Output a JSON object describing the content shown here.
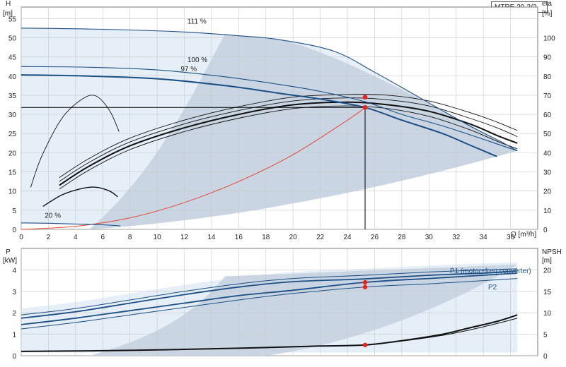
{
  "chart_data": [
    {
      "type": "line",
      "name": "H/eta",
      "y_axis_label": "H",
      "y_axis_unit": "[m]",
      "y2_axis_label": "eta",
      "y2_axis_unit": "[%]",
      "x_axis_label": "Q [m³/h]",
      "model": "MTRE 20-2/2",
      "xlim": [
        0,
        38
      ],
      "ylim": [
        0,
        58
      ],
      "y2lim": [
        0,
        116
      ],
      "x_ticks": [
        "0",
        "2",
        "4",
        "6",
        "8",
        "10",
        "12",
        "14",
        "16",
        "18",
        "20",
        "22",
        "24",
        "26",
        "28",
        "30",
        "32",
        "34",
        "36"
      ],
      "y_ticks": [
        "0",
        "5",
        "10",
        "15",
        "20",
        "25",
        "30",
        "35",
        "40",
        "45",
        "50",
        "55"
      ],
      "y2_ticks": [
        "0",
        "10",
        "20",
        "30",
        "40",
        "50",
        "60",
        "70",
        "80",
        "90",
        "100"
      ],
      "speed_labels": [
        "111 %",
        "100 %",
        "97 %",
        "20 %"
      ],
      "series": [
        {
          "label": "111 %",
          "x": [
            0,
            6,
            12,
            16,
            19,
            23,
            26,
            30,
            33,
            35.5,
            36.5
          ],
          "y": [
            52.5,
            52.2,
            51.5,
            50.5,
            49.5,
            46.5,
            41,
            33,
            27,
            22.5,
            20.5
          ]
        },
        {
          "label": "100 %",
          "x": [
            0,
            5,
            10,
            15,
            19,
            22,
            25.3,
            28,
            31,
            34,
            36.5
          ],
          "y": [
            42.5,
            42.3,
            41.6,
            39.8,
            37.8,
            36,
            33.3,
            30,
            27,
            23.5,
            20.5
          ]
        },
        {
          "label": "97 %",
          "x": [
            0,
            5,
            10,
            15,
            19,
            22,
            25.3,
            28,
            31,
            33,
            35
          ],
          "y": [
            40.3,
            40,
            39.3,
            37.5,
            35.5,
            34,
            31.8,
            28.5,
            25,
            22,
            19
          ]
        },
        {
          "label": "20 %",
          "x": [
            0,
            2,
            4,
            6,
            7.3
          ],
          "y": [
            1.7,
            1.6,
            1.4,
            1.2,
            0.9
          ]
        }
      ],
      "system_curve": {
        "x": [
          0,
          4,
          8,
          12,
          16,
          20,
          24,
          25.3
        ],
        "y": [
          0,
          0.8,
          3,
          7,
          12.5,
          19.5,
          28.5,
          31.8
        ]
      },
      "eta_curves": [
        {
          "x": [
            2.8,
            5,
            8,
            12,
            16,
            20,
            24,
            27,
            30,
            33,
            35,
            36.5
          ],
          "y": [
            10.5,
            15.5,
            20.8,
            25.5,
            29,
            31.5,
            32.2,
            31.5,
            29.5,
            26,
            23,
            21
          ]
        },
        {
          "x": [
            2.8,
            5,
            8,
            12,
            16,
            20,
            24,
            27,
            30,
            33,
            35,
            36.5
          ],
          "y": [
            11.5,
            16.5,
            21.8,
            26.5,
            30,
            32.5,
            33.2,
            32.5,
            30.8,
            27.5,
            24.5,
            22.5
          ]
        },
        {
          "x": [
            2.8,
            5,
            8,
            12,
            16,
            20,
            24,
            27,
            30,
            33,
            35,
            36.5
          ],
          "y": [
            12.5,
            17.5,
            22.8,
            27.5,
            31,
            33.5,
            34.3,
            33.8,
            32.2,
            29,
            26.5,
            24.2
          ]
        },
        {
          "x": [
            2.8,
            5,
            8,
            12,
            16,
            20,
            24,
            27,
            30,
            33,
            35,
            36.5
          ],
          "y": [
            13.5,
            18.5,
            23.8,
            28.5,
            32,
            34.5,
            35.2,
            35,
            33.5,
            30.5,
            28,
            25.8
          ]
        }
      ],
      "thin_eta_curve": {
        "x": [
          0.7,
          1.5,
          3,
          4.5,
          5.5,
          6.5,
          7.2
        ],
        "y": [
          11,
          19,
          29,
          34,
          34.8,
          31,
          25.5
        ]
      },
      "low_eta_curve": {
        "x": [
          1.6,
          3,
          4.5,
          5.5,
          6.5,
          7.1
        ],
        "y": [
          6,
          9,
          10.7,
          11,
          10,
          8.5
        ]
      },
      "duty_point": {
        "x": 25.3,
        "y": 31.8
      },
      "duty_point_upper": {
        "x": 25.3,
        "y": 34.5
      }
    },
    {
      "type": "line",
      "name": "P/NPSH",
      "y_axis_label": "P",
      "y_axis_unit": "[kW]",
      "y2_axis_label": "NPSH",
      "y2_axis_unit": "[m]",
      "xlim": [
        0,
        38
      ],
      "ylim": [
        0,
        5
      ],
      "y2lim": [
        0,
        25
      ],
      "y_ticks": [
        "0",
        "1",
        "2",
        "3",
        "4"
      ],
      "y2_ticks": [
        "0",
        "5",
        "10",
        "15",
        "20"
      ],
      "series_labels": [
        "P1 (motor+freq.converter)",
        "P2"
      ],
      "series": [
        {
          "label": "P1 (motor+freq.converter)",
          "x": [
            0,
            4,
            8,
            12,
            16,
            20,
            25.3,
            30,
            34,
            36.5
          ],
          "y": [
            1.9,
            2.2,
            2.6,
            3.0,
            3.35,
            3.6,
            3.75,
            3.9,
            4.0,
            4.05
          ]
        },
        {
          "label": "P1",
          "x": [
            0,
            4,
            8,
            12,
            16,
            20,
            25.3,
            30,
            34,
            36.5
          ],
          "y": [
            1.75,
            2.05,
            2.45,
            2.85,
            3.2,
            3.45,
            3.58,
            3.75,
            3.85,
            3.95
          ]
        },
        {
          "label": "P2",
          "x": [
            0,
            4,
            8,
            12,
            16,
            20,
            25.3,
            30,
            34,
            36.5
          ],
          "y": [
            1.45,
            1.75,
            2.1,
            2.45,
            2.8,
            3.05,
            3.42,
            3.6,
            3.75,
            3.85
          ]
        },
        {
          "label": "P2",
          "x": [
            0,
            4,
            8,
            12,
            16,
            20,
            25.3,
            30,
            34,
            36.5
          ],
          "y": [
            1.25,
            1.55,
            1.9,
            2.25,
            2.6,
            2.9,
            3.2,
            3.35,
            3.5,
            3.6
          ]
        }
      ],
      "npsh_curve": {
        "x": [
          0,
          8,
          16,
          22,
          25.3,
          28,
          31,
          33,
          35,
          36.5
        ],
        "y": [
          0.2,
          0.25,
          0.35,
          0.45,
          0.5,
          0.7,
          1.0,
          1.3,
          1.6,
          1.9
        ]
      },
      "npsh_curve_b": {
        "x": [
          25.3,
          28,
          31,
          33,
          35,
          36.5
        ],
        "y": [
          0.5,
          0.68,
          0.95,
          1.2,
          1.5,
          1.75
        ]
      },
      "duty_points": [
        {
          "x": 25.3,
          "y": 3.42
        },
        {
          "x": 25.3,
          "y": 3.2
        },
        {
          "x": 25.3,
          "y": 0.5
        }
      ]
    }
  ]
}
